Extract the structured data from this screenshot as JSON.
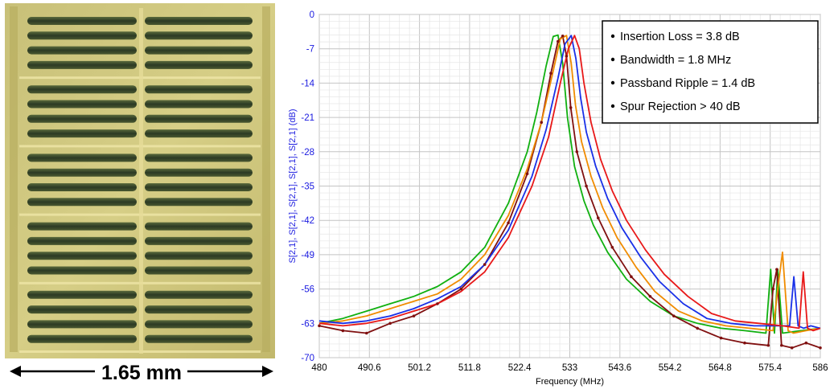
{
  "figure": {
    "scale_bar_label": "1.65 mm"
  },
  "chart_data": {
    "type": "line",
    "title": "",
    "xlabel": "Frequency (MHz)",
    "ylabel": "S[2,1], S[2,1], S[2,1], S[2,1], S[2,1] (dB)",
    "xlim": [
      480,
      586
    ],
    "ylim": [
      -70,
      0
    ],
    "x_ticks": [
      "480",
      "490.6",
      "501.2",
      "511.8",
      "522.4",
      "533",
      "543.6",
      "554.2",
      "564.8",
      "575.4",
      "586"
    ],
    "y_ticks": [
      "0",
      "-7",
      "-14",
      "-21",
      "-28",
      "-35",
      "-42",
      "-49",
      "-56",
      "-63",
      "-70"
    ],
    "grid": true,
    "legend_placement": "top-right",
    "annotations": [
      "Insertion Loss = 3.8 dB",
      "Bandwidth = 1.8 MHz",
      "Passband Ripple = 1.4 dB",
      "Spur Rejection > 40 dB"
    ],
    "series": [
      {
        "color": "#10b010",
        "x": [
          480,
          485,
          490,
          495,
          500,
          505,
          510,
          515,
          520,
          524,
          526,
          528,
          529.5,
          530.5,
          531.5,
          532.5,
          534,
          536,
          538,
          541,
          545,
          550,
          555,
          560,
          565,
          570,
          574.5,
          575.5,
          576.3,
          577,
          578,
          582,
          586
        ],
        "y": [
          -63,
          -62,
          -60.5,
          -59,
          -57.5,
          -55.5,
          -52.5,
          -47.5,
          -38.5,
          -28,
          -20,
          -10.5,
          -4.5,
          -4.2,
          -10,
          -21,
          -31,
          -38,
          -43,
          -48.5,
          -54,
          -58.5,
          -61.5,
          -63,
          -64,
          -64.5,
          -65,
          -52,
          -65,
          -52,
          -65,
          -64.5,
          -64
        ]
      },
      {
        "color": "#801010",
        "x": [
          480,
          485,
          490,
          495,
          500,
          505,
          510,
          515,
          520,
          524,
          527,
          529,
          530.5,
          531.5,
          532.3,
          533.2,
          534.5,
          536.5,
          539,
          542,
          546,
          550,
          555,
          560,
          565,
          570,
          575,
          576,
          576.8,
          577.8,
          580,
          583,
          586
        ],
        "y": [
          -63.5,
          -64.5,
          -65,
          -63,
          -61.5,
          -59,
          -56,
          -51,
          -42.5,
          -32.5,
          -22,
          -12,
          -5.5,
          -4.4,
          -8.5,
          -19,
          -28,
          -35,
          -41.5,
          -47.5,
          -53.5,
          -57.5,
          -61.5,
          -64,
          -66,
          -67,
          -67.5,
          -56,
          -52,
          -67.5,
          -68,
          -67,
          -68
        ]
      },
      {
        "color": "#f08c00",
        "x": [
          480,
          485,
          490,
          495,
          500,
          505,
          510,
          515,
          520,
          524,
          527,
          529.5,
          531,
          532.3,
          533.3,
          534.2,
          535.5,
          537.5,
          540,
          543,
          547,
          551,
          556,
          561,
          566,
          571,
          576,
          577,
          578,
          579.2,
          580.3,
          583,
          586
        ],
        "y": [
          -63,
          -62.5,
          -61.5,
          -60,
          -58.5,
          -57,
          -54,
          -49,
          -41,
          -31.5,
          -22,
          -11.5,
          -5,
          -4.3,
          -10,
          -18.5,
          -26,
          -33,
          -39.5,
          -45.5,
          -51.5,
          -56.5,
          -60.5,
          -62.5,
          -63.5,
          -64,
          -64.5,
          -56,
          -48.5,
          -64.5,
          -65,
          -64.5,
          -64
        ]
      },
      {
        "color": "#1830e8",
        "x": [
          480,
          485,
          490,
          495,
          500,
          505,
          510,
          515,
          520,
          525,
          528,
          530.5,
          532,
          533.3,
          534.3,
          535.3,
          536.5,
          538.5,
          541,
          544,
          548,
          552,
          557,
          562,
          567,
          572,
          577,
          579.5,
          580.4,
          581.3,
          582.5,
          584,
          586
        ],
        "y": [
          -62.5,
          -63,
          -62.5,
          -61.5,
          -60,
          -58,
          -55.5,
          -51,
          -44,
          -33,
          -23.5,
          -13,
          -6,
          -4.3,
          -9,
          -17,
          -24,
          -31,
          -37.5,
          -43.5,
          -49.5,
          -54.5,
          -59,
          -62,
          -63,
          -63.5,
          -63.5,
          -63.5,
          -53.5,
          -63.5,
          -64,
          -63.5,
          -64
        ]
      },
      {
        "color": "#e81818",
        "x": [
          480,
          485,
          490,
          495,
          500,
          505,
          510,
          515,
          520,
          525,
          528.5,
          531,
          532.7,
          534,
          535,
          536,
          537.5,
          539.5,
          542,
          545,
          549,
          553,
          558,
          563,
          568,
          573,
          578,
          581.5,
          582.4,
          583.3,
          584.5,
          586
        ],
        "y": [
          -63,
          -63.5,
          -63,
          -62,
          -60.5,
          -59,
          -56.5,
          -52.5,
          -45.5,
          -35,
          -25,
          -14,
          -7,
          -4.3,
          -7,
          -14,
          -22,
          -29.5,
          -36,
          -42,
          -48,
          -53,
          -57.5,
          -61,
          -62.5,
          -63,
          -63.5,
          -64,
          -52.5,
          -64,
          -64.5,
          -64
        ]
      }
    ]
  }
}
